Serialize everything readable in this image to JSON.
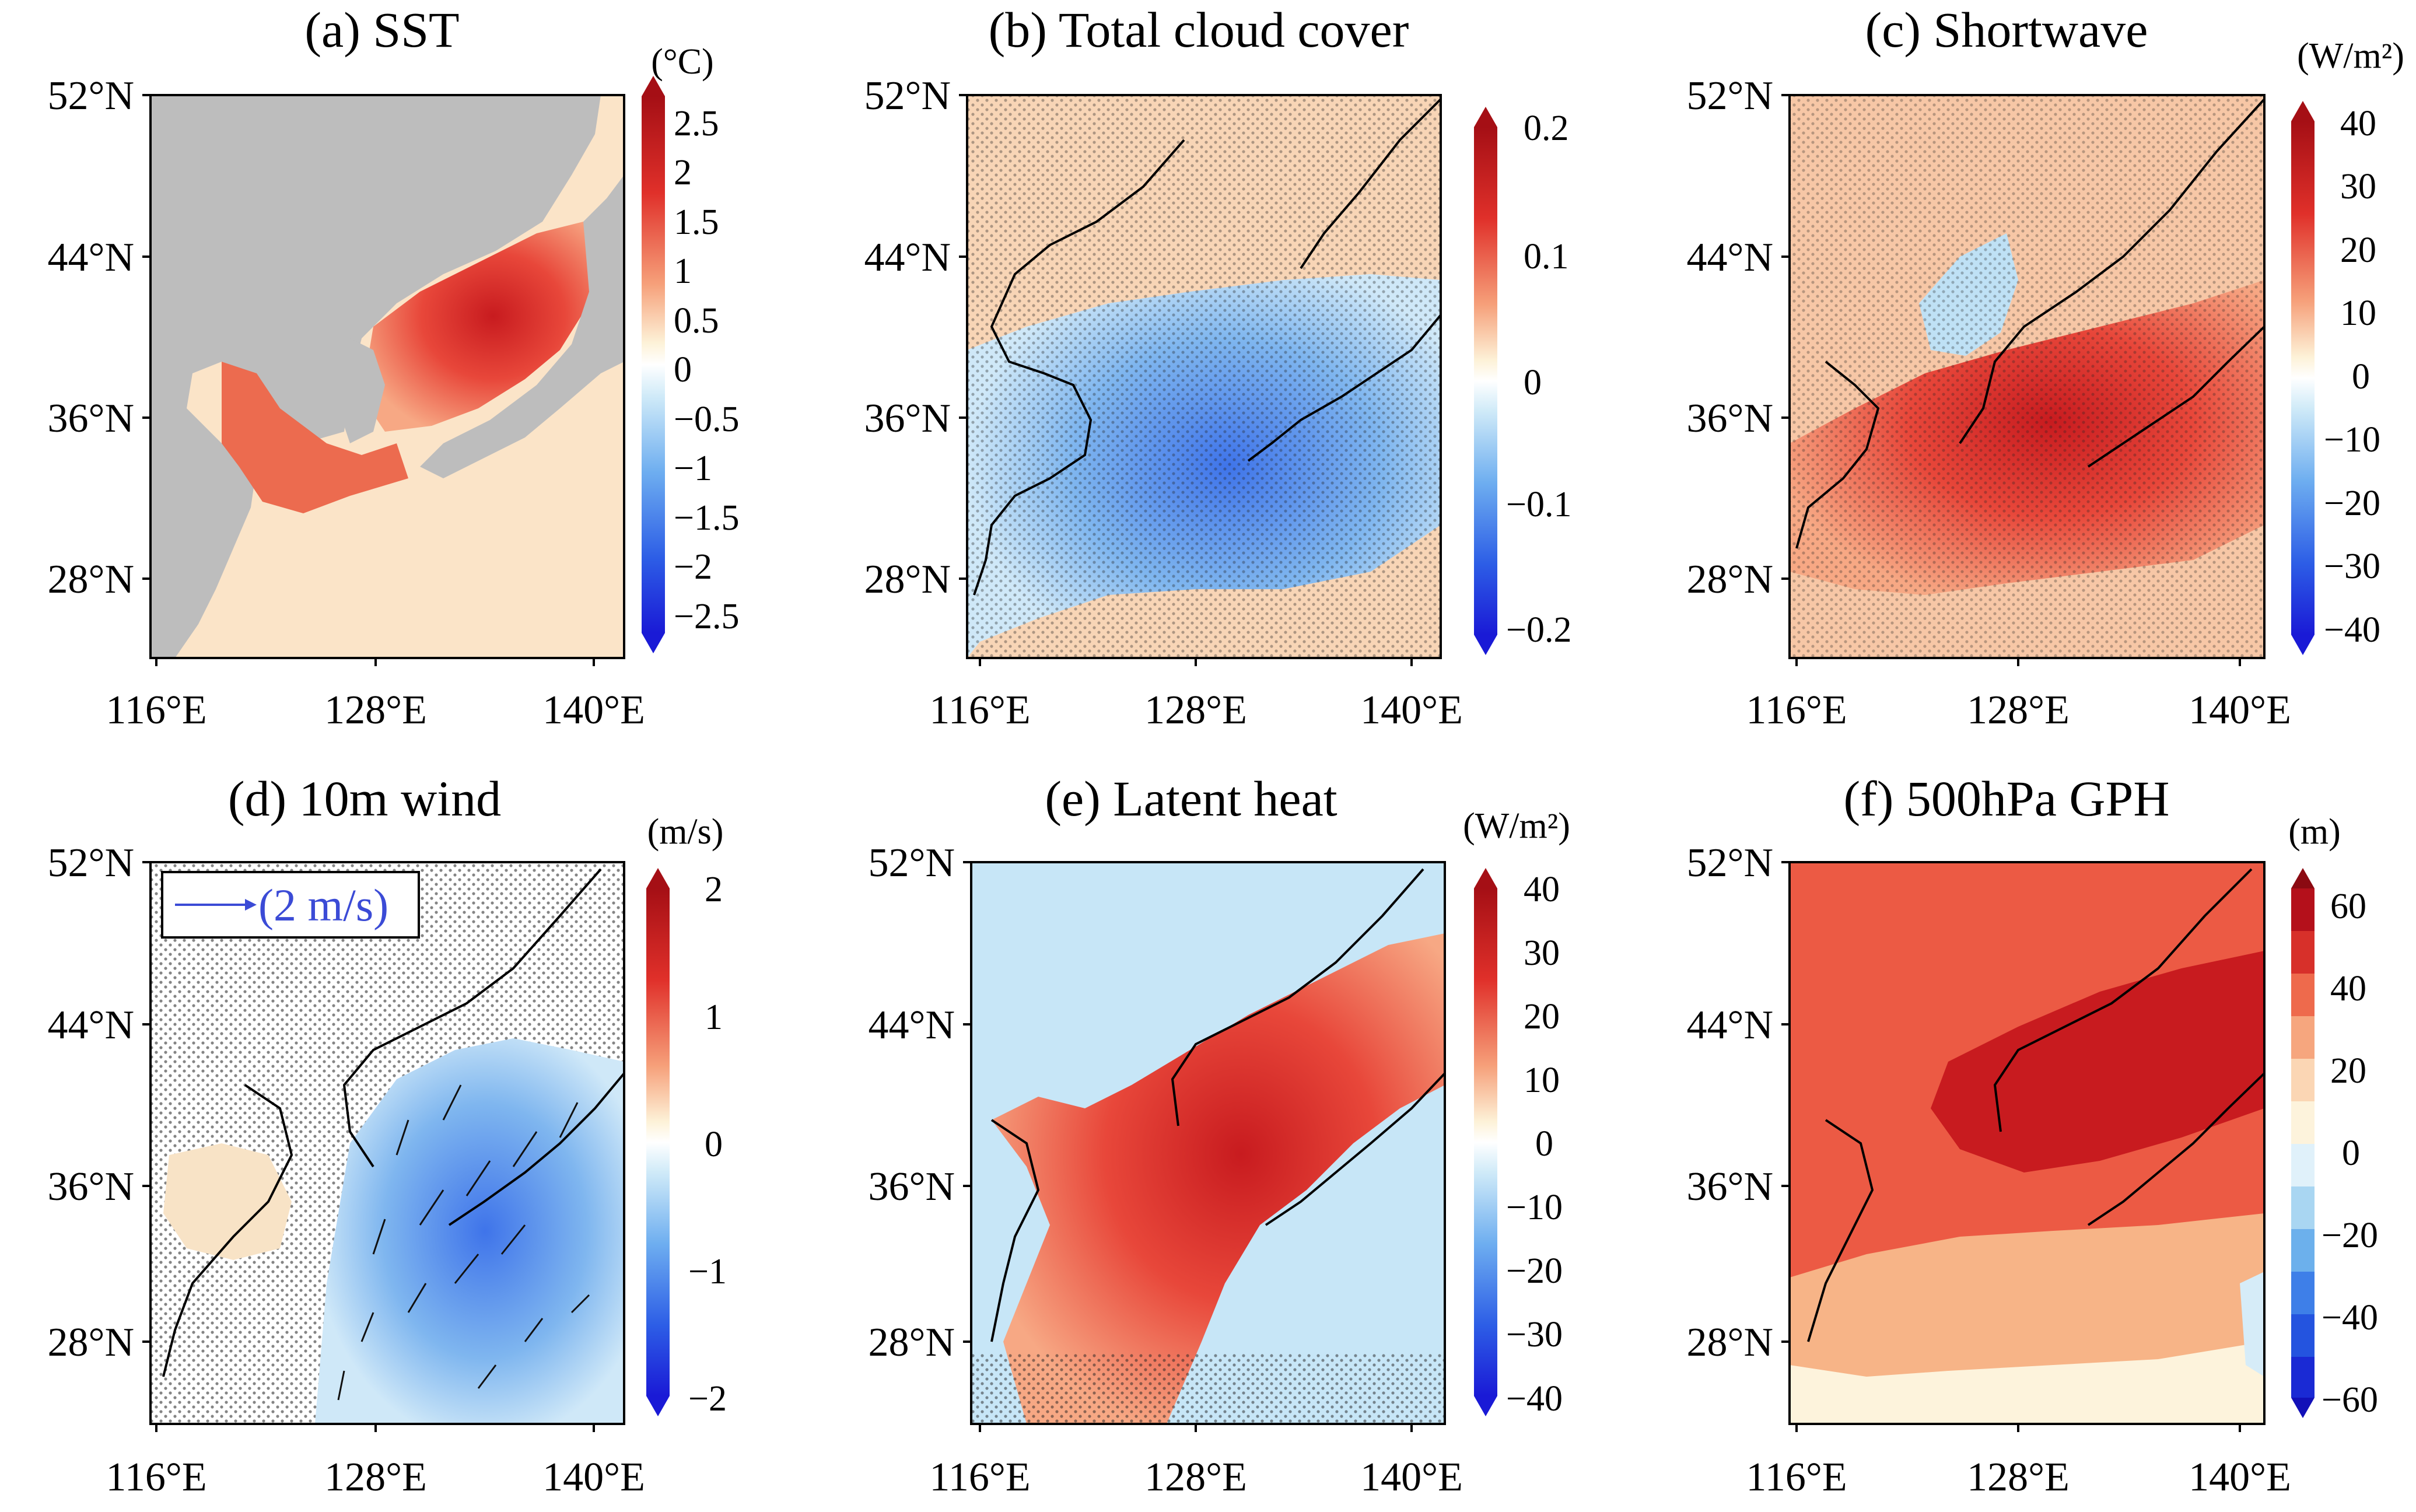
{
  "figure": {
    "lat_labels": [
      "52°N",
      "44°N",
      "36°N",
      "28°N"
    ],
    "lon_labels": [
      "116°E",
      "128°E",
      "140°E"
    ],
    "colors": {
      "land": "#bdbdbd",
      "deep_red": "#b4101b",
      "red": "#e23b2c",
      "orange": "#f4a582",
      "cream": "#fdf3dc",
      "white": "#ffffff",
      "light_blue": "#bfe3f6",
      "blue": "#6aa8ea",
      "deep_blue": "#1f3fd9",
      "wind_arrow": "#3b4bd6"
    },
    "panels": [
      {
        "title": "(a) SST",
        "unit": "(°C)",
        "colorbar_ticks": [
          "2.5",
          "2",
          "1.5",
          "1",
          "0.5",
          "0",
          "−0.5",
          "−1",
          "−1.5",
          "−2",
          "−2.5"
        ],
        "colorbar_style": "continuous",
        "icon": "sea-surface-temperature-map"
      },
      {
        "title": "(b) Total cloud cover",
        "unit": "",
        "colorbar_ticks": [
          "0.2",
          "0.1",
          "0",
          "−0.1",
          "−0.2"
        ],
        "colorbar_style": "continuous",
        "icon": "cloud-cover-map"
      },
      {
        "title": "(c) Shortwave",
        "unit": "(W/m²)",
        "colorbar_ticks": [
          "40",
          "30",
          "20",
          "10",
          "0",
          "−10",
          "−20",
          "−30",
          "−40"
        ],
        "colorbar_style": "continuous",
        "icon": "shortwave-radiation-map"
      },
      {
        "title": "(d) 10m wind",
        "unit": "(m/s)",
        "colorbar_ticks": [
          "2",
          "1",
          "0",
          "−1",
          "−2"
        ],
        "colorbar_style": "continuous",
        "reference_vector": "(2 m/s)",
        "icon": "wind-vector-map"
      },
      {
        "title": "(e) Latent heat",
        "unit": "(W/m²)",
        "colorbar_ticks": [
          "40",
          "30",
          "20",
          "10",
          "0",
          "−10",
          "−20",
          "−30",
          "−40"
        ],
        "colorbar_style": "continuous",
        "icon": "latent-heat-map"
      },
      {
        "title": "(f) 500hPa GPH",
        "unit": "(m)",
        "colorbar_ticks": [
          "60",
          "40",
          "20",
          "0",
          "−20",
          "−40",
          "−60"
        ],
        "colorbar_style": "discrete",
        "icon": "geopotential-height-map"
      }
    ]
  }
}
